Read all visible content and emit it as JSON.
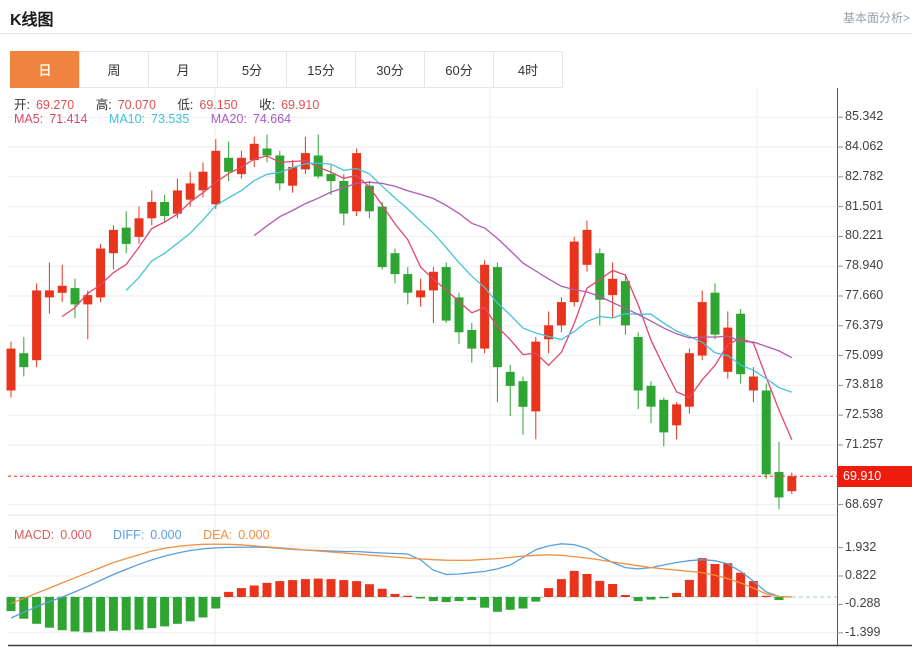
{
  "header": {
    "title": "K线图",
    "link": "基本面分析>"
  },
  "tabs": {
    "active_index": 0,
    "items": [
      {
        "label": "日",
        "name": "tab-day"
      },
      {
        "label": "周",
        "name": "tab-week"
      },
      {
        "label": "月",
        "name": "tab-month"
      },
      {
        "label": "5分",
        "name": "tab-5min"
      },
      {
        "label": "15分",
        "name": "tab-15min"
      },
      {
        "label": "30分",
        "name": "tab-30min"
      },
      {
        "label": "60分",
        "name": "tab-60min"
      },
      {
        "label": "4时",
        "name": "tab-4hour"
      }
    ]
  },
  "legend": {
    "open_label": "开:",
    "open": "69.270",
    "high_label": "高:",
    "high": "70.070",
    "low_label": "低:",
    "low": "69.150",
    "close_label": "收:",
    "close": "69.910"
  },
  "ma_legend": {
    "ma5_label": "MA5:",
    "ma5": "71.414",
    "ma10_label": "MA10:",
    "ma10": "73.535",
    "ma20_label": "MA20:",
    "ma20": "74.664"
  },
  "macd_legend": {
    "macd_label": "MACD:",
    "macd": "0.000",
    "diff_label": "DIFF:",
    "diff": "0.000",
    "dea_label": "DEA:",
    "dea": "0.000"
  },
  "colors": {
    "up": "#e8341c",
    "down": "#2ea433",
    "ma5": "#e0476d",
    "ma10": "#45c3da",
    "ma20": "#b259b2",
    "diff": "#5b9fe0",
    "dea": "#ef9143",
    "price_badge": "#ee1c0c",
    "price_line": "#f03030",
    "tab_active": "#ef8440",
    "grid": "#ededed",
    "axis_line": "#55585c",
    "zero_line": "#9ecfc6"
  },
  "chart_data": [
    {
      "type": "candlestick",
      "name": "kline-daily",
      "current_price": {
        "value": 69.91,
        "text": "69.910"
      },
      "y_axis": {
        "tick_top": 85.342,
        "tick_step": 1.2805,
        "gridline_count": 14,
        "labels": [
          {
            "v": 85.342,
            "t": "85.342"
          },
          {
            "v": 84.062,
            "t": "84.062"
          },
          {
            "v": 82.782,
            "t": "82.782"
          },
          {
            "v": 81.501,
            "t": "81.501"
          },
          {
            "v": 80.221,
            "t": "80.221"
          },
          {
            "v": 78.94,
            "t": "78.940"
          },
          {
            "v": 77.66,
            "t": "77.660"
          },
          {
            "v": 76.379,
            "t": "76.379"
          },
          {
            "v": 75.099,
            "t": "75.099"
          },
          {
            "v": 73.818,
            "t": "73.818"
          },
          {
            "v": 72.538,
            "t": "72.538"
          },
          {
            "v": 71.257,
            "t": "71.257"
          },
          {
            "v": 68.697,
            "t": "68.697"
          }
        ]
      },
      "ma": [
        {
          "period": 5,
          "color": "#e0476d"
        },
        {
          "period": 10,
          "color": "#45c3da"
        },
        {
          "period": 20,
          "color": "#b259b2"
        }
      ],
      "candles": [
        [
          73.6,
          75.7,
          73.3,
          75.4
        ],
        [
          75.2,
          75.9,
          74.2,
          74.6
        ],
        [
          74.9,
          78.2,
          74.6,
          77.9
        ],
        [
          77.6,
          79.1,
          76.9,
          77.9
        ],
        [
          77.8,
          79.0,
          77.4,
          78.1
        ],
        [
          78.0,
          78.4,
          76.7,
          77.3
        ],
        [
          77.3,
          77.9,
          75.8,
          77.7
        ],
        [
          77.6,
          79.9,
          77.4,
          79.7
        ],
        [
          79.5,
          80.7,
          78.8,
          80.5
        ],
        [
          80.6,
          81.3,
          79.5,
          79.9
        ],
        [
          80.2,
          81.5,
          79.9,
          81.0
        ],
        [
          81.0,
          82.2,
          80.7,
          81.7
        ],
        [
          81.7,
          82.0,
          80.8,
          81.1
        ],
        [
          81.2,
          82.7,
          81.0,
          82.2
        ],
        [
          81.8,
          83.0,
          81.5,
          82.5
        ],
        [
          82.2,
          83.4,
          81.9,
          83.0
        ],
        [
          81.6,
          84.4,
          81.4,
          83.9
        ],
        [
          83.6,
          84.3,
          82.6,
          83.0
        ],
        [
          82.9,
          83.9,
          82.7,
          83.6
        ],
        [
          83.5,
          84.5,
          83.2,
          84.2
        ],
        [
          84.0,
          84.6,
          83.4,
          83.7
        ],
        [
          83.7,
          83.9,
          82.2,
          82.5
        ],
        [
          82.4,
          83.5,
          82.1,
          83.2
        ],
        [
          83.1,
          84.5,
          82.9,
          83.8
        ],
        [
          83.7,
          84.6,
          82.7,
          82.8
        ],
        [
          82.9,
          83.3,
          82.0,
          82.6
        ],
        [
          82.6,
          82.9,
          80.7,
          81.2
        ],
        [
          81.3,
          84.0,
          81.1,
          83.8
        ],
        [
          82.4,
          82.6,
          81.0,
          81.3
        ],
        [
          81.5,
          81.7,
          78.8,
          78.9
        ],
        [
          79.5,
          79.7,
          78.2,
          78.6
        ],
        [
          78.6,
          78.9,
          77.3,
          77.8
        ],
        [
          77.6,
          78.4,
          77.2,
          77.9
        ],
        [
          77.9,
          78.9,
          76.5,
          78.7
        ],
        [
          78.9,
          79.1,
          76.5,
          76.6
        ],
        [
          77.6,
          77.8,
          75.6,
          76.1
        ],
        [
          76.2,
          76.5,
          74.8,
          75.4
        ],
        [
          75.4,
          79.2,
          75.2,
          79.0
        ],
        [
          78.9,
          79.1,
          73.1,
          74.6
        ],
        [
          74.4,
          74.7,
          72.5,
          73.8
        ],
        [
          74.0,
          74.2,
          71.7,
          72.9
        ],
        [
          72.7,
          75.9,
          71.5,
          75.7
        ],
        [
          75.8,
          77.0,
          75.2,
          76.4
        ],
        [
          76.4,
          77.6,
          76.1,
          77.4
        ],
        [
          77.4,
          80.2,
          77.2,
          80.0
        ],
        [
          79.0,
          80.9,
          78.7,
          80.5
        ],
        [
          79.5,
          79.7,
          76.4,
          77.5
        ],
        [
          77.7,
          79.1,
          76.7,
          78.4
        ],
        [
          78.3,
          78.6,
          76.0,
          76.4
        ],
        [
          75.9,
          76.1,
          72.8,
          73.6
        ],
        [
          73.8,
          74.0,
          72.2,
          72.9
        ],
        [
          73.2,
          73.3,
          71.2,
          71.8
        ],
        [
          72.1,
          73.1,
          71.5,
          73.0
        ],
        [
          72.9,
          75.4,
          72.6,
          75.2
        ],
        [
          75.1,
          77.9,
          74.9,
          77.4
        ],
        [
          77.8,
          78.2,
          75.8,
          76.0
        ],
        [
          74.4,
          77.0,
          74.1,
          76.3
        ],
        [
          76.9,
          77.1,
          73.9,
          74.3
        ],
        [
          73.6,
          74.6,
          73.1,
          74.2
        ],
        [
          73.6,
          73.9,
          69.8,
          70.0
        ],
        [
          70.1,
          71.4,
          68.5,
          69.0
        ],
        [
          69.27,
          70.07,
          69.15,
          69.91
        ]
      ]
    },
    {
      "type": "bar",
      "name": "macd-histogram",
      "y_ticks": [
        {
          "v": 1.932,
          "t": "1.932"
        },
        {
          "v": 0.822,
          "t": "0.822"
        },
        {
          "v": -0.288,
          "t": "-0.288"
        },
        {
          "v": -1.399,
          "t": "-1.399"
        }
      ],
      "values": [
        -0.55,
        -0.85,
        -1.05,
        -1.2,
        -1.3,
        -1.35,
        -1.38,
        -1.35,
        -1.32,
        -1.3,
        -1.28,
        -1.22,
        -1.15,
        -1.05,
        -0.95,
        -0.8,
        -0.45,
        0.2,
        0.35,
        0.45,
        0.55,
        0.62,
        0.66,
        0.7,
        0.72,
        0.7,
        0.66,
        0.62,
        0.5,
        0.32,
        0.12,
        0.05,
        -0.06,
        -0.16,
        -0.2,
        -0.16,
        -0.12,
        -0.42,
        -0.58,
        -0.5,
        -0.45,
        -0.18,
        0.35,
        0.7,
        1.02,
        0.9,
        0.63,
        0.51,
        0.08,
        -0.16,
        -0.1,
        -0.05,
        0.16,
        0.67,
        1.52,
        1.29,
        1.32,
        0.95,
        0.62,
        0.05,
        -0.12,
        0
      ],
      "lines": [
        {
          "name": "DIFF",
          "color": "#5b9fe0",
          "values": [
            -0.82,
            -0.6,
            -0.38,
            -0.18,
            0.0,
            0.2,
            0.42,
            0.65,
            0.88,
            1.08,
            1.28,
            1.45,
            1.6,
            1.72,
            1.82,
            1.88,
            1.92,
            1.94,
            1.95,
            1.95,
            1.94,
            1.9,
            1.86,
            1.84,
            1.82,
            1.8,
            1.78,
            1.78,
            1.75,
            1.72,
            1.7,
            1.68,
            1.45,
            1.05,
            0.88,
            0.9,
            0.95,
            1.0,
            1.1,
            1.25,
            1.55,
            1.85,
            2.0,
            2.08,
            2.05,
            1.9,
            1.6,
            1.35,
            1.15,
            1.1,
            1.15,
            1.25,
            1.35,
            1.42,
            1.46,
            1.42,
            1.3,
            1.0,
            0.62,
            0.2,
            0.02,
            0.0
          ]
        },
        {
          "name": "DEA",
          "color": "#ef9143",
          "values": [
            -0.25,
            -0.05,
            0.15,
            0.35,
            0.55,
            0.75,
            0.95,
            1.15,
            1.35,
            1.5,
            1.65,
            1.8,
            1.9,
            1.98,
            2.03,
            2.06,
            2.07,
            2.06,
            2.04,
            2.0,
            1.96,
            1.92,
            1.88,
            1.84,
            1.8,
            1.76,
            1.72,
            1.68,
            1.64,
            1.6,
            1.56,
            1.52,
            1.49,
            1.46,
            1.44,
            1.43,
            1.44,
            1.47,
            1.5,
            1.55,
            1.6,
            1.63,
            1.65,
            1.63,
            1.58,
            1.52,
            1.45,
            1.37,
            1.3,
            1.22,
            1.15,
            1.1,
            1.05,
            1.0,
            0.95,
            0.85,
            0.72,
            0.55,
            0.35,
            0.12,
            0.02,
            0.0
          ]
        }
      ]
    }
  ]
}
